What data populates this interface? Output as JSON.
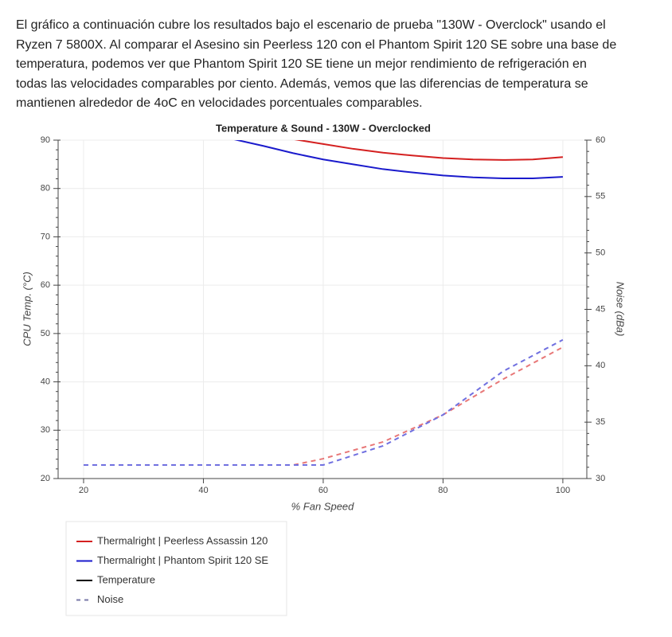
{
  "paragraph": [
    "El gráfico a continuación cubre los resultados bajo el escenario de prueba \"130W - Overclock\" usando el",
    "Ryzen 7 5800X. Al comparar el Asesino sin Peerless 120 con el Phantom Spirit 120 SE sobre una base de",
    "temperatura, podemos ver que Phantom Spirit 120 SE tiene un mejor rendimiento de refrigeración en",
    "todas las velocidades comparables por ciento. Además, vemos que las diferencias de temperatura se",
    "mantienen alrededor de 4oC en velocidades porcentuales comparables."
  ],
  "chart_data": {
    "type": "line",
    "title": "Temperature & Sound - 130W - Overclocked",
    "xlabel": "% Fan Speed",
    "ylabel": "CPU Temp. (°C)",
    "y2label": "Noise (dBa)",
    "xlim": [
      15.75,
      104
    ],
    "xticks": [
      20,
      40,
      60,
      80,
      100
    ],
    "ylim": [
      20,
      90
    ],
    "yticks": [
      20,
      30,
      40,
      50,
      60,
      70,
      80,
      90
    ],
    "y2lim": [
      30,
      60
    ],
    "y2ticks": [
      30,
      35,
      40,
      45,
      50,
      55,
      60
    ],
    "y_minor_ticks": 4,
    "y2_minor_ticks": 4,
    "grid": true,
    "series": [
      {
        "name": "Thermalright | Peerless Assassin 120",
        "color": "#d42020",
        "x": [
          55,
          60,
          65,
          70,
          75,
          80,
          85,
          90,
          95,
          100
        ],
        "values": [
          90.2,
          89.2,
          88.2,
          87.4,
          86.8,
          86.3,
          86.0,
          85.9,
          86.0,
          86.5
        ]
      },
      {
        "name": "Thermalright | Phantom Spirit 120 SE",
        "color": "#1a1acc",
        "x": [
          45,
          50,
          55,
          60,
          65,
          70,
          75,
          80,
          85,
          90,
          95,
          100
        ],
        "values": [
          90.2,
          88.8,
          87.3,
          86.0,
          85.0,
          84.0,
          83.3,
          82.7,
          82.3,
          82.1,
          82.1,
          82.4
        ]
      },
      {
        "axis": "y2",
        "color": "#e87878",
        "dashed": true,
        "x": [
          20,
          30,
          40,
          50,
          55,
          60,
          70,
          80,
          90,
          100
        ],
        "values": [
          31.2,
          31.2,
          31.2,
          31.2,
          31.2,
          31.76,
          33.25,
          35.65,
          38.8,
          41.65
        ]
      },
      {
        "axis": "y2",
        "color": "#7070e0",
        "dashed": true,
        "x": [
          20,
          30,
          40,
          50,
          55,
          60,
          70,
          80,
          90,
          100
        ],
        "values": [
          31.2,
          31.2,
          31.2,
          31.2,
          31.2,
          31.2,
          32.9,
          35.65,
          39.5,
          42.3
        ]
      }
    ],
    "style_legend": [
      {
        "label": "Temperature",
        "color": "#000000",
        "dashed": false
      },
      {
        "label": "Noise",
        "color": "#7a7aa8",
        "dashed": true
      }
    ]
  }
}
